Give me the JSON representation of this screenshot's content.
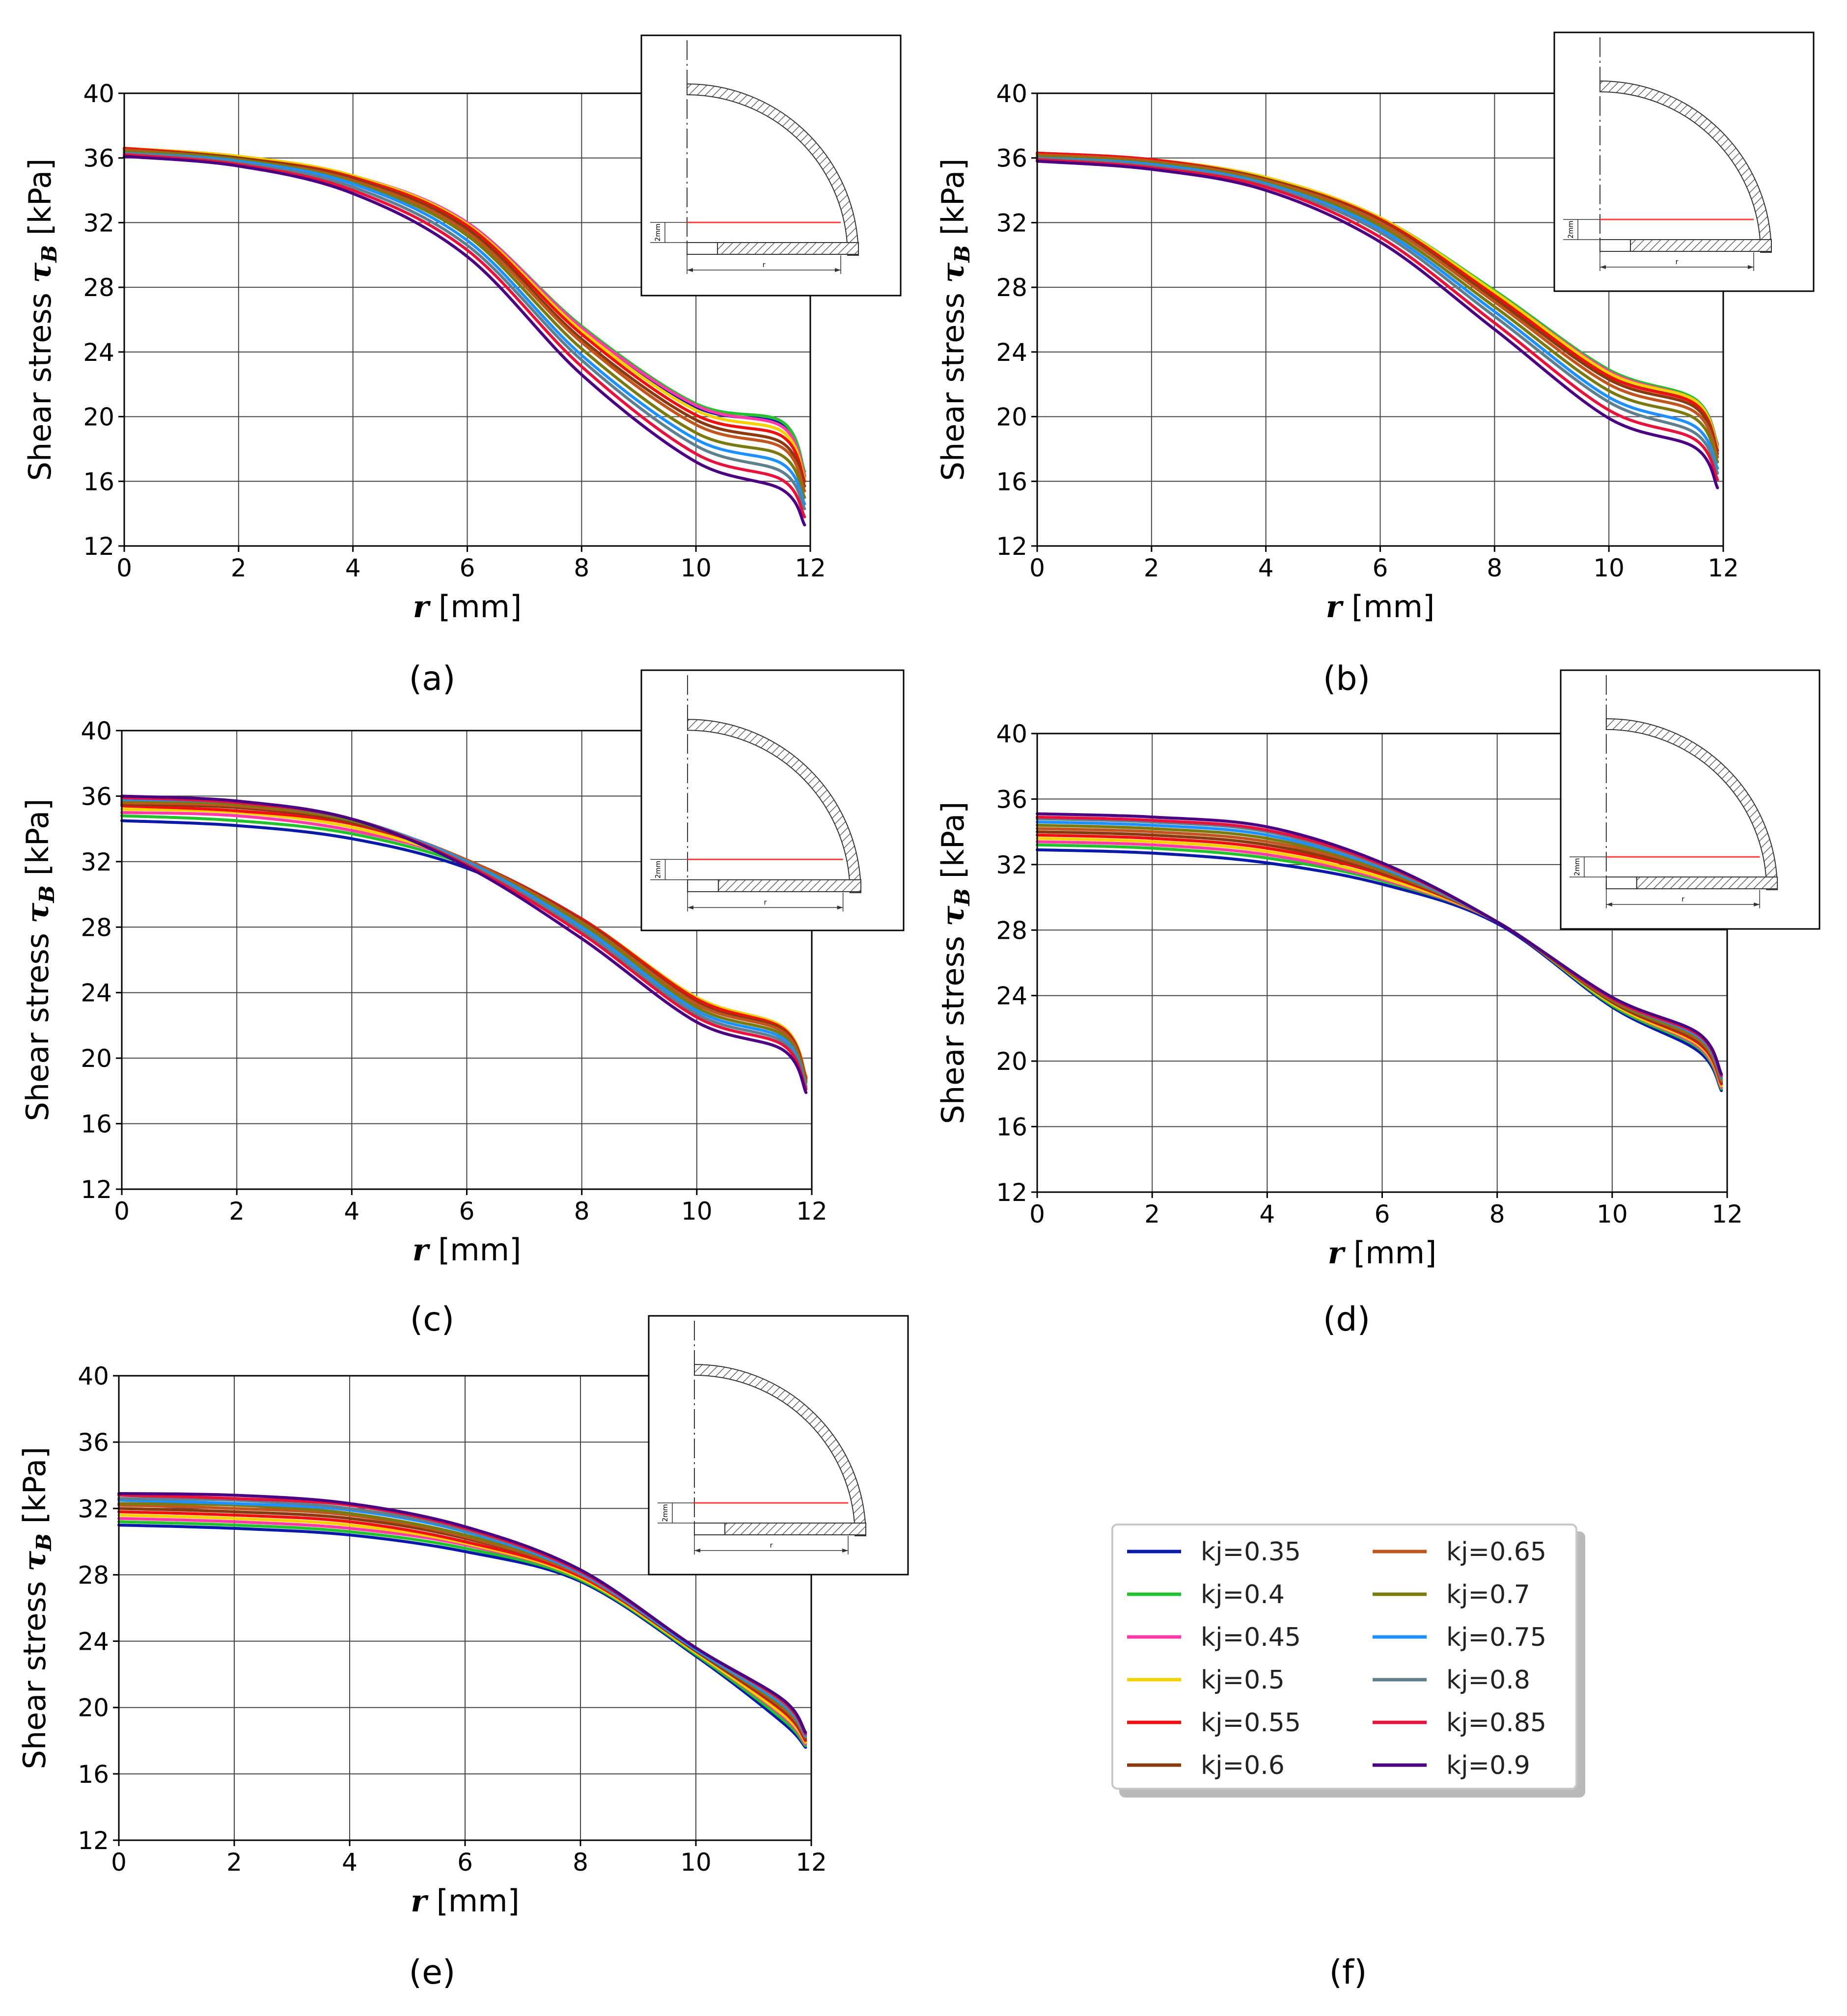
{
  "figure": {
    "panel_labels": [
      "(a)",
      "(b)",
      "(c)",
      "(d)",
      "(e)",
      "(f)"
    ],
    "inset": {
      "gap_label": "2mm",
      "radius_label": "r"
    }
  },
  "legend": {
    "entries": [
      {
        "label": "kj=0.35",
        "color": "#0a1aa8"
      },
      {
        "label": "kj=0.4",
        "color": "#22c22e"
      },
      {
        "label": "kj=0.45",
        "color": "#ff3aa6"
      },
      {
        "label": "kj=0.5",
        "color": "#f5d100"
      },
      {
        "label": "kj=0.55",
        "color": "#ee1111"
      },
      {
        "label": "kj=0.6",
        "color": "#8b3a0f"
      },
      {
        "label": "kj=0.65",
        "color": "#c0561e"
      },
      {
        "label": "kj=0.7",
        "color": "#7a7a10"
      },
      {
        "label": "kj=0.75",
        "color": "#1e90ff"
      },
      {
        "label": "kj=0.8",
        "color": "#5f7f8f"
      },
      {
        "label": "kj=0.85",
        "color": "#e6143c"
      },
      {
        "label": "kj=0.9",
        "color": "#4b0082"
      }
    ]
  },
  "chart_data": [
    {
      "type": "line",
      "panel": "(a)",
      "xlabel_var": "r",
      "xlabel_unit": "[mm]",
      "ylabel_text": "Shear stress",
      "ylabel_sym": "τ",
      "ylabel_sub": "B",
      "ylabel_unit": "[kPa]",
      "xlim": [
        0,
        12
      ],
      "ylim": [
        12,
        40
      ],
      "xticks": [
        0,
        2,
        4,
        6,
        8,
        10,
        12
      ],
      "yticks": [
        12,
        16,
        20,
        24,
        28,
        32,
        36,
        40
      ],
      "grid": true,
      "x": [
        0,
        2,
        4,
        6,
        8,
        10,
        11.5,
        11.9
      ],
      "series": [
        {
          "name": "kj=0.35",
          "values": [
            36.5,
            36.0,
            34.8,
            31.8,
            25.4,
            20.6,
            19.5,
            16.3
          ]
        },
        {
          "name": "kj=0.4",
          "values": [
            36.6,
            36.1,
            34.9,
            32.0,
            25.6,
            20.8,
            19.7,
            16.6
          ]
        },
        {
          "name": "kj=0.45",
          "values": [
            36.6,
            36.1,
            34.9,
            32.0,
            25.5,
            20.7,
            19.4,
            16.4
          ]
        },
        {
          "name": "kj=0.5",
          "values": [
            36.6,
            36.1,
            34.9,
            31.9,
            25.3,
            20.4,
            19.1,
            16.2
          ]
        },
        {
          "name": "kj=0.55",
          "values": [
            36.6,
            36.0,
            34.8,
            31.8,
            25.1,
            20.1,
            18.8,
            16.0
          ]
        },
        {
          "name": "kj=0.6",
          "values": [
            36.5,
            36.0,
            34.7,
            31.6,
            24.8,
            19.8,
            18.4,
            15.7
          ]
        },
        {
          "name": "kj=0.65",
          "values": [
            36.5,
            35.9,
            34.6,
            31.4,
            24.6,
            19.5,
            18.1,
            15.4
          ]
        },
        {
          "name": "kj=0.7",
          "values": [
            36.4,
            35.9,
            34.5,
            31.2,
            24.2,
            19.0,
            17.6,
            15.0
          ]
        },
        {
          "name": "kj=0.75",
          "values": [
            36.3,
            35.8,
            34.4,
            30.9,
            23.8,
            18.6,
            17.1,
            14.6
          ]
        },
        {
          "name": "kj=0.8",
          "values": [
            36.3,
            35.7,
            34.2,
            30.6,
            23.5,
            18.2,
            16.6,
            14.3
          ]
        },
        {
          "name": "kj=0.85",
          "values": [
            36.2,
            35.6,
            34.0,
            30.3,
            23.1,
            17.7,
            16.1,
            13.8
          ]
        },
        {
          "name": "kj=0.9",
          "values": [
            36.1,
            35.5,
            33.8,
            29.9,
            22.6,
            17.2,
            15.5,
            13.3
          ]
        }
      ]
    },
    {
      "type": "line",
      "panel": "(b)",
      "xlabel_var": "r",
      "xlabel_unit": "[mm]",
      "ylabel_text": "Shear stress",
      "ylabel_sym": "τ",
      "ylabel_sub": "B",
      "ylabel_unit": "[kPa]",
      "xlim": [
        0,
        12
      ],
      "ylim": [
        12,
        40
      ],
      "xticks": [
        0,
        2,
        4,
        6,
        8,
        10,
        12
      ],
      "yticks": [
        12,
        16,
        20,
        24,
        28,
        32,
        36,
        40
      ],
      "grid": true,
      "x": [
        0,
        2,
        4,
        6,
        8,
        10,
        11.5,
        11.9
      ],
      "series": [
        {
          "name": "kj=0.35",
          "values": [
            36.3,
            35.9,
            34.7,
            32.2,
            27.6,
            22.6,
            20.9,
            17.9
          ]
        },
        {
          "name": "kj=0.4",
          "values": [
            36.3,
            35.9,
            34.8,
            32.3,
            27.8,
            22.9,
            21.1,
            18.3
          ]
        },
        {
          "name": "kj=0.45",
          "values": [
            36.3,
            35.9,
            34.8,
            32.3,
            27.7,
            22.8,
            21.0,
            18.2
          ]
        },
        {
          "name": "kj=0.5",
          "values": [
            36.3,
            35.9,
            34.8,
            32.3,
            27.7,
            22.7,
            21.0,
            18.1
          ]
        },
        {
          "name": "kj=0.55",
          "values": [
            36.3,
            35.9,
            34.7,
            32.2,
            27.5,
            22.5,
            20.8,
            17.9
          ]
        },
        {
          "name": "kj=0.6",
          "values": [
            36.2,
            35.8,
            34.7,
            32.1,
            27.3,
            22.3,
            20.6,
            17.7
          ]
        },
        {
          "name": "kj=0.65",
          "values": [
            36.2,
            35.8,
            34.6,
            32.0,
            27.1,
            22.0,
            20.3,
            17.5
          ]
        },
        {
          "name": "kj=0.7",
          "values": [
            36.1,
            35.7,
            34.5,
            31.8,
            26.8,
            21.6,
            19.9,
            17.2
          ]
        },
        {
          "name": "kj=0.75",
          "values": [
            36.0,
            35.6,
            34.4,
            31.6,
            26.5,
            21.2,
            19.4,
            16.8
          ]
        },
        {
          "name": "kj=0.8",
          "values": [
            36.0,
            35.5,
            34.3,
            31.4,
            26.2,
            20.9,
            19.0,
            16.5
          ]
        },
        {
          "name": "kj=0.85",
          "values": [
            35.9,
            35.4,
            34.2,
            31.1,
            25.8,
            20.4,
            18.6,
            16.1
          ]
        },
        {
          "name": "kj=0.9",
          "values": [
            35.8,
            35.3,
            34.0,
            30.8,
            25.4,
            19.9,
            18.1,
            15.6
          ]
        }
      ]
    },
    {
      "type": "line",
      "panel": "(c)",
      "xlabel_var": "r",
      "xlabel_unit": "[mm]",
      "ylabel_text": "Shear stress",
      "ylabel_sym": "τ",
      "ylabel_sub": "B",
      "ylabel_unit": "[kPa]",
      "xlim": [
        0,
        12
      ],
      "ylim": [
        12,
        40
      ],
      "xticks": [
        0,
        2,
        4,
        6,
        8,
        10,
        12
      ],
      "yticks": [
        12,
        16,
        20,
        24,
        28,
        32,
        36,
        40
      ],
      "grid": true,
      "x": [
        0,
        2,
        4,
        6,
        8,
        10,
        11.5,
        11.9
      ],
      "series": [
        {
          "name": "kj=0.35",
          "values": [
            34.5,
            34.2,
            33.4,
            31.6,
            28.2,
            23.4,
            21.6,
            18.6
          ]
        },
        {
          "name": "kj=0.4",
          "values": [
            34.8,
            34.5,
            33.7,
            31.8,
            28.4,
            23.6,
            21.8,
            18.8
          ]
        },
        {
          "name": "kj=0.45",
          "values": [
            35.0,
            34.8,
            33.9,
            32.0,
            28.5,
            23.7,
            21.9,
            18.9
          ]
        },
        {
          "name": "kj=0.5",
          "values": [
            35.2,
            35.0,
            34.1,
            32.0,
            28.5,
            23.7,
            21.9,
            18.9
          ]
        },
        {
          "name": "kj=0.55",
          "values": [
            35.4,
            35.1,
            34.3,
            32.1,
            28.5,
            23.6,
            21.8,
            18.8
          ]
        },
        {
          "name": "kj=0.6",
          "values": [
            35.5,
            35.3,
            34.4,
            32.1,
            28.4,
            23.4,
            21.7,
            18.7
          ]
        },
        {
          "name": "kj=0.65",
          "values": [
            35.6,
            35.4,
            34.5,
            32.1,
            28.3,
            23.3,
            21.6,
            18.6
          ]
        },
        {
          "name": "kj=0.7",
          "values": [
            35.7,
            35.5,
            34.5,
            32.0,
            28.2,
            23.1,
            21.4,
            18.5
          ]
        },
        {
          "name": "kj=0.75",
          "values": [
            35.8,
            35.6,
            34.6,
            32.0,
            28.0,
            22.9,
            21.2,
            18.3
          ]
        },
        {
          "name": "kj=0.8",
          "values": [
            35.9,
            35.6,
            34.6,
            31.9,
            27.8,
            22.7,
            21.0,
            18.2
          ]
        },
        {
          "name": "kj=0.85",
          "values": [
            35.9,
            35.6,
            34.6,
            31.8,
            27.6,
            22.5,
            20.8,
            18.1
          ]
        },
        {
          "name": "kj=0.9",
          "values": [
            36.0,
            35.7,
            34.6,
            31.7,
            27.3,
            22.2,
            20.5,
            17.9
          ]
        }
      ]
    },
    {
      "type": "line",
      "panel": "(d)",
      "xlabel_var": "r",
      "xlabel_unit": "[mm]",
      "ylabel_text": "Shear stress",
      "ylabel_sym": "τ",
      "ylabel_sub": "B",
      "ylabel_unit": "[kPa]",
      "xlim": [
        0,
        12
      ],
      "ylim": [
        12,
        40
      ],
      "xticks": [
        0,
        2,
        4,
        6,
        8,
        10,
        12
      ],
      "yticks": [
        12,
        16,
        20,
        24,
        28,
        32,
        36,
        40
      ],
      "grid": true,
      "x": [
        0,
        2,
        4,
        6,
        8,
        10,
        11.5,
        11.9
      ],
      "series": [
        {
          "name": "kj=0.35",
          "values": [
            32.9,
            32.7,
            32.1,
            30.8,
            28.4,
            23.3,
            20.6,
            18.2
          ]
        },
        {
          "name": "kj=0.4",
          "values": [
            33.2,
            33.0,
            32.4,
            31.0,
            28.5,
            23.4,
            20.8,
            18.3
          ]
        },
        {
          "name": "kj=0.45",
          "values": [
            33.4,
            33.2,
            32.6,
            31.1,
            28.5,
            23.5,
            20.9,
            18.4
          ]
        },
        {
          "name": "kj=0.5",
          "values": [
            33.6,
            33.4,
            32.8,
            31.2,
            28.5,
            23.5,
            21.0,
            18.5
          ]
        },
        {
          "name": "kj=0.55",
          "values": [
            33.8,
            33.6,
            33.0,
            31.4,
            28.5,
            23.6,
            21.1,
            18.6
          ]
        },
        {
          "name": "kj=0.6",
          "values": [
            34.0,
            33.8,
            33.2,
            31.5,
            28.5,
            23.6,
            21.2,
            18.7
          ]
        },
        {
          "name": "kj=0.65",
          "values": [
            34.2,
            34.0,
            33.4,
            31.6,
            28.5,
            23.7,
            21.3,
            18.8
          ]
        },
        {
          "name": "kj=0.7",
          "values": [
            34.4,
            34.2,
            33.6,
            31.7,
            28.5,
            23.7,
            21.4,
            18.9
          ]
        },
        {
          "name": "kj=0.75",
          "values": [
            34.6,
            34.4,
            33.8,
            31.8,
            28.5,
            23.8,
            21.5,
            19.0
          ]
        },
        {
          "name": "kj=0.8",
          "values": [
            34.8,
            34.6,
            34.0,
            31.9,
            28.5,
            23.8,
            21.6,
            19.1
          ]
        },
        {
          "name": "kj=0.85",
          "values": [
            34.9,
            34.7,
            34.1,
            32.0,
            28.5,
            23.8,
            21.6,
            19.1
          ]
        },
        {
          "name": "kj=0.9",
          "values": [
            35.1,
            34.9,
            34.3,
            32.1,
            28.5,
            23.9,
            21.7,
            19.2
          ]
        }
      ]
    },
    {
      "type": "line",
      "panel": "(e)",
      "xlabel_var": "r",
      "xlabel_unit": "[mm]",
      "ylabel_text": "Shear stress",
      "ylabel_sym": "τ",
      "ylabel_sub": "B",
      "ylabel_unit": "[kPa]",
      "xlim": [
        0,
        12
      ],
      "ylim": [
        12,
        40
      ],
      "xticks": [
        0,
        2,
        4,
        6,
        8,
        10,
        12
      ],
      "yticks": [
        12,
        16,
        20,
        24,
        28,
        32,
        36,
        40
      ],
      "grid": true,
      "x": [
        0,
        2,
        4,
        6,
        8,
        10,
        11.5,
        11.9
      ],
      "series": [
        {
          "name": "kj=0.35",
          "values": [
            31.0,
            30.8,
            30.4,
            29.4,
            27.6,
            23.1,
            19.1,
            17.6
          ]
        },
        {
          "name": "kj=0.4",
          "values": [
            31.2,
            31.0,
            30.6,
            29.6,
            27.7,
            23.2,
            19.3,
            17.7
          ]
        },
        {
          "name": "kj=0.45",
          "values": [
            31.4,
            31.2,
            30.8,
            29.8,
            27.8,
            23.3,
            19.5,
            17.8
          ]
        },
        {
          "name": "kj=0.5",
          "values": [
            31.6,
            31.4,
            31.0,
            29.9,
            27.8,
            23.3,
            19.6,
            17.9
          ]
        },
        {
          "name": "kj=0.55",
          "values": [
            31.8,
            31.6,
            31.2,
            30.0,
            27.9,
            23.4,
            19.8,
            18.0
          ]
        },
        {
          "name": "kj=0.6",
          "values": [
            32.0,
            31.8,
            31.4,
            30.2,
            28.0,
            23.4,
            19.9,
            18.1
          ]
        },
        {
          "name": "kj=0.65",
          "values": [
            32.2,
            32.0,
            31.6,
            30.3,
            28.0,
            23.5,
            20.0,
            18.2
          ]
        },
        {
          "name": "kj=0.7",
          "values": [
            32.3,
            32.2,
            31.7,
            30.4,
            28.1,
            23.5,
            20.1,
            18.3
          ]
        },
        {
          "name": "kj=0.75",
          "values": [
            32.5,
            32.3,
            31.9,
            30.6,
            28.1,
            23.5,
            20.2,
            18.3
          ]
        },
        {
          "name": "kj=0.8",
          "values": [
            32.6,
            32.5,
            32.0,
            30.7,
            28.2,
            23.6,
            20.3,
            18.4
          ]
        },
        {
          "name": "kj=0.85",
          "values": [
            32.8,
            32.6,
            32.2,
            30.8,
            28.2,
            23.6,
            20.4,
            18.4
          ]
        },
        {
          "name": "kj=0.9",
          "values": [
            32.9,
            32.8,
            32.3,
            30.9,
            28.3,
            23.6,
            20.5,
            18.5
          ]
        }
      ]
    }
  ]
}
